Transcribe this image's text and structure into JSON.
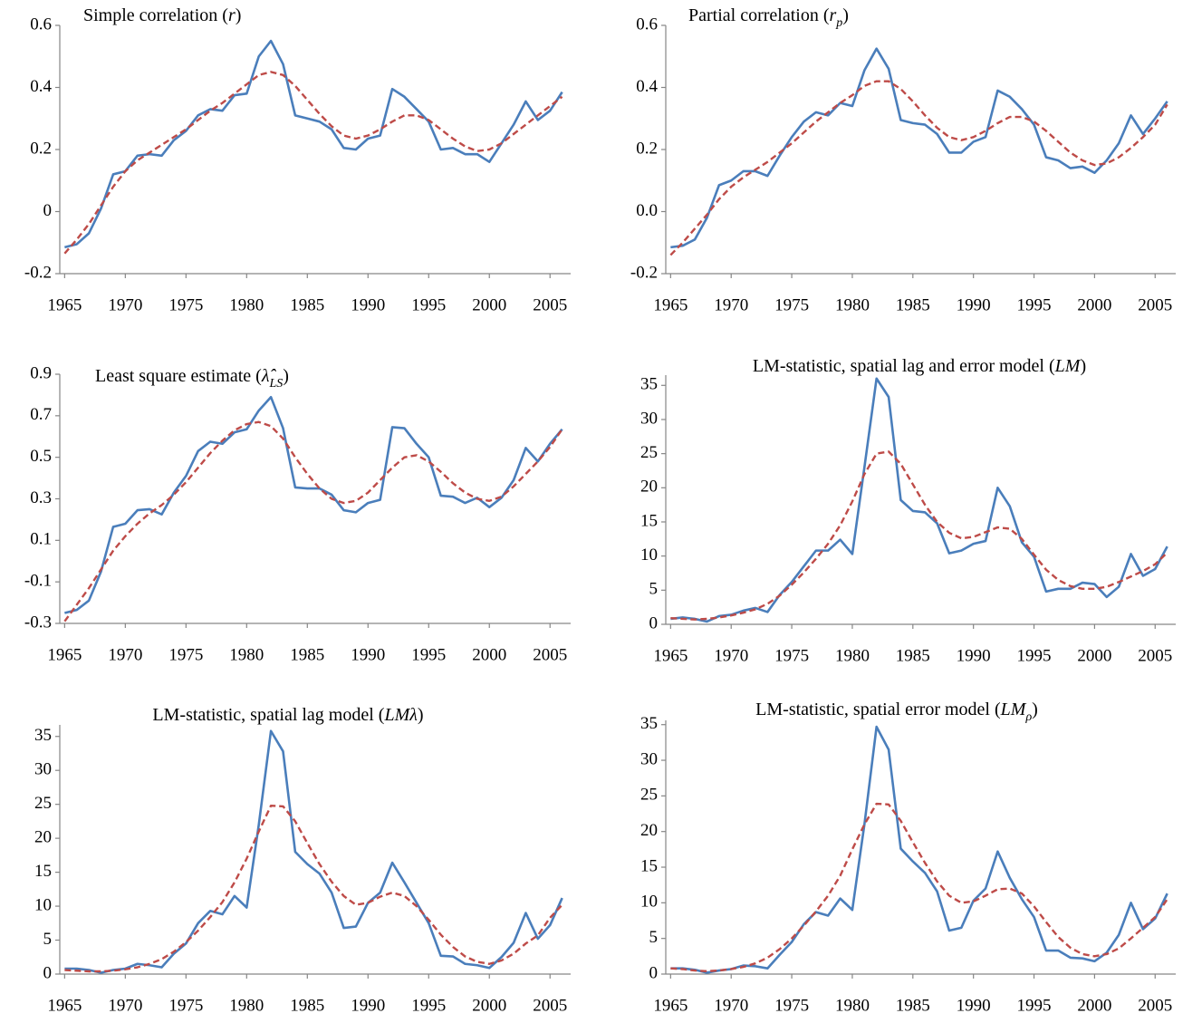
{
  "chart_data": [
    {
      "type": "line",
      "title": [
        {
          "text": "Simple correlation ("
        },
        {
          "text": "r",
          "style": "italic"
        },
        {
          "text": ")"
        }
      ],
      "x": [
        1965,
        1966,
        1967,
        1968,
        1969,
        1970,
        1971,
        1972,
        1973,
        1974,
        1975,
        1976,
        1977,
        1978,
        1979,
        1980,
        1981,
        1982,
        1983,
        1984,
        1985,
        1986,
        1987,
        1988,
        1989,
        1990,
        1991,
        1992,
        1993,
        1994,
        1995,
        1996,
        1997,
        1998,
        1999,
        2000,
        2001,
        2002,
        2003,
        2004,
        2005,
        2006
      ],
      "xlim": [
        1964.6,
        2006.7
      ],
      "xticks": [
        1965,
        1970,
        1975,
        1980,
        1985,
        1990,
        1995,
        2000,
        2005
      ],
      "ylim": [
        -0.2,
        0.6
      ],
      "yticks": [
        -0.2,
        0,
        0.2,
        0.4,
        0.6
      ],
      "series": [
        {
          "color": "#4a7ebb",
          "dash": false,
          "values": [
            -0.115,
            -0.105,
            -0.07,
            0.01,
            0.12,
            0.13,
            0.18,
            0.185,
            0.18,
            0.23,
            0.26,
            0.31,
            0.33,
            0.325,
            0.375,
            0.38,
            0.5,
            0.55,
            0.475,
            0.31,
            0.3,
            0.29,
            0.265,
            0.205,
            0.2,
            0.235,
            0.245,
            0.395,
            0.37,
            0.33,
            0.29,
            0.2,
            0.205,
            0.185,
            0.185,
            0.16,
            0.22,
            0.28,
            0.355,
            0.295,
            0.325,
            0.385
          ]
        },
        {
          "color": "#be4b48",
          "dash": true,
          "values": [
            -0.135,
            -0.09,
            -0.04,
            0.02,
            0.08,
            0.13,
            0.165,
            0.19,
            0.215,
            0.24,
            0.265,
            0.295,
            0.325,
            0.35,
            0.38,
            0.41,
            0.44,
            0.45,
            0.44,
            0.405,
            0.36,
            0.315,
            0.275,
            0.245,
            0.235,
            0.245,
            0.265,
            0.29,
            0.31,
            0.31,
            0.295,
            0.265,
            0.235,
            0.21,
            0.195,
            0.2,
            0.22,
            0.25,
            0.28,
            0.31,
            0.34,
            0.37
          ]
        }
      ]
    },
    {
      "type": "line",
      "title": [
        {
          "text": "Partial correlation ("
        },
        {
          "text": "r",
          "style": "italic"
        },
        {
          "text": "p",
          "style": "italic-sub"
        },
        {
          "text": ")"
        }
      ],
      "x": [
        1965,
        1966,
        1967,
        1968,
        1969,
        1970,
        1971,
        1972,
        1973,
        1974,
        1975,
        1976,
        1977,
        1978,
        1979,
        1980,
        1981,
        1982,
        1983,
        1984,
        1985,
        1986,
        1987,
        1988,
        1989,
        1990,
        1991,
        1992,
        1993,
        1994,
        1995,
        1996,
        1997,
        1998,
        1999,
        2000,
        2001,
        2002,
        2003,
        2004,
        2005,
        2006
      ],
      "xlim": [
        1964.6,
        2006.7
      ],
      "xticks": [
        1965,
        1970,
        1975,
        1980,
        1985,
        1990,
        1995,
        2000,
        2005
      ],
      "ylim": [
        -0.2,
        0.6
      ],
      "yticks": [
        -0.2,
        {
          "value": 0,
          "label": "0.0"
        },
        0.2,
        0.4,
        0.6
      ],
      "series": [
        {
          "color": "#4a7ebb",
          "dash": false,
          "values": [
            -0.115,
            -0.11,
            -0.09,
            -0.02,
            0.085,
            0.1,
            0.13,
            0.13,
            0.115,
            0.18,
            0.24,
            0.29,
            0.32,
            0.31,
            0.35,
            0.34,
            0.455,
            0.525,
            0.46,
            0.295,
            0.285,
            0.28,
            0.25,
            0.19,
            0.19,
            0.225,
            0.24,
            0.39,
            0.37,
            0.33,
            0.28,
            0.175,
            0.165,
            0.14,
            0.145,
            0.125,
            0.165,
            0.22,
            0.31,
            0.25,
            0.3,
            0.355
          ]
        },
        {
          "color": "#be4b48",
          "dash": true,
          "values": [
            -0.14,
            -0.1,
            -0.055,
            -0.01,
            0.04,
            0.08,
            0.11,
            0.135,
            0.16,
            0.19,
            0.22,
            0.255,
            0.29,
            0.32,
            0.35,
            0.375,
            0.405,
            0.42,
            0.42,
            0.395,
            0.355,
            0.31,
            0.27,
            0.24,
            0.23,
            0.24,
            0.26,
            0.285,
            0.305,
            0.305,
            0.29,
            0.26,
            0.225,
            0.19,
            0.165,
            0.15,
            0.155,
            0.175,
            0.205,
            0.24,
            0.28,
            0.345
          ]
        }
      ]
    },
    {
      "type": "line",
      "title": [
        {
          "text": "Least square estimate  ("
        },
        {
          "text": "λ̂",
          "style": "italic"
        },
        {
          "text": "LS",
          "style": "italic-sub"
        },
        {
          "text": ")"
        }
      ],
      "x": [
        1965,
        1966,
        1967,
        1968,
        1969,
        1970,
        1971,
        1972,
        1973,
        1974,
        1975,
        1976,
        1977,
        1978,
        1979,
        1980,
        1981,
        1982,
        1983,
        1984,
        1985,
        1986,
        1987,
        1988,
        1989,
        1990,
        1991,
        1992,
        1993,
        1994,
        1995,
        1996,
        1997,
        1998,
        1999,
        2000,
        2001,
        2002,
        2003,
        2004,
        2005,
        2006
      ],
      "xlim": [
        1964.6,
        2006.7
      ],
      "xticks": [
        1965,
        1970,
        1975,
        1980,
        1985,
        1990,
        1995,
        2000,
        2005
      ],
      "ylim": [
        -0.3,
        0.9
      ],
      "yticks": [
        -0.3,
        -0.1,
        0.1,
        0.3,
        0.5,
        0.7,
        0.9
      ],
      "series": [
        {
          "color": "#4a7ebb",
          "dash": false,
          "values": [
            -0.25,
            -0.235,
            -0.19,
            -0.05,
            0.165,
            0.18,
            0.245,
            0.25,
            0.225,
            0.33,
            0.41,
            0.53,
            0.575,
            0.565,
            0.62,
            0.635,
            0.725,
            0.79,
            0.64,
            0.355,
            0.35,
            0.35,
            0.32,
            0.245,
            0.235,
            0.28,
            0.295,
            0.645,
            0.64,
            0.565,
            0.5,
            0.315,
            0.31,
            0.28,
            0.305,
            0.26,
            0.305,
            0.39,
            0.545,
            0.48,
            0.565,
            0.635
          ]
        },
        {
          "color": "#be4b48",
          "dash": true,
          "values": [
            -0.29,
            -0.21,
            -0.13,
            -0.04,
            0.05,
            0.12,
            0.18,
            0.23,
            0.27,
            0.32,
            0.38,
            0.45,
            0.52,
            0.58,
            0.63,
            0.66,
            0.67,
            0.65,
            0.59,
            0.5,
            0.42,
            0.35,
            0.3,
            0.28,
            0.29,
            0.33,
            0.39,
            0.45,
            0.5,
            0.51,
            0.48,
            0.43,
            0.375,
            0.33,
            0.3,
            0.29,
            0.31,
            0.36,
            0.42,
            0.48,
            0.55,
            0.635
          ]
        }
      ]
    },
    {
      "type": "line",
      "title": [
        {
          "text": "LM-statistic, spatial lag and error model ("
        },
        {
          "text": "LM",
          "style": "italic"
        },
        {
          "text": ")"
        }
      ],
      "x": [
        1965,
        1966,
        1967,
        1968,
        1969,
        1970,
        1971,
        1972,
        1973,
        1974,
        1975,
        1976,
        1977,
        1978,
        1979,
        1980,
        1981,
        1982,
        1983,
        1984,
        1985,
        1986,
        1987,
        1988,
        1989,
        1990,
        1991,
        1992,
        1993,
        1994,
        1995,
        1996,
        1997,
        1998,
        1999,
        2000,
        2001,
        2002,
        2003,
        2004,
        2005,
        2006
      ],
      "xlim": [
        1964.6,
        2006.7
      ],
      "xticks": [
        1965,
        1970,
        1975,
        1980,
        1985,
        1990,
        1995,
        2000,
        2005
      ],
      "ylim": [
        0,
        36.5
      ],
      "yticks": [
        0,
        5,
        10,
        15,
        20,
        25,
        30,
        35
      ],
      "series": [
        {
          "color": "#4a7ebb",
          "dash": false,
          "values": [
            0.8,
            1.0,
            0.8,
            0.4,
            1.2,
            1.4,
            2.0,
            2.4,
            1.8,
            4.3,
            6.2,
            8.5,
            10.8,
            10.8,
            12.4,
            10.3,
            23,
            36,
            33.3,
            18.2,
            16.6,
            16.4,
            14.8,
            10.4,
            10.8,
            11.8,
            12.2,
            20,
            17.3,
            12,
            9.9,
            4.8,
            5.2,
            5.2,
            6.1,
            5.9,
            4,
            5.5,
            10.3,
            7.1,
            8.1,
            11.4
          ]
        },
        {
          "color": "#be4b48",
          "dash": true,
          "values": [
            0.9,
            0.8,
            0.7,
            0.8,
            1.0,
            1.3,
            1.7,
            2.2,
            3.0,
            4.2,
            5.8,
            7.6,
            9.6,
            11.8,
            14.5,
            18,
            22,
            25,
            25.3,
            23.5,
            20.5,
            17.5,
            15,
            13.4,
            12.6,
            12.8,
            13.5,
            14.2,
            14,
            12.5,
            10.2,
            8,
            6.5,
            5.6,
            5.2,
            5.2,
            5.5,
            6.2,
            7,
            7.8,
            8.8,
            10.5
          ]
        }
      ]
    },
    {
      "type": "line",
      "title": [
        {
          "text": "LM-statistic, spatial lag model ("
        },
        {
          "text": "LMλ",
          "style": "italic"
        },
        {
          "text": ")"
        }
      ],
      "x": [
        1965,
        1966,
        1967,
        1968,
        1969,
        1970,
        1971,
        1972,
        1973,
        1974,
        1975,
        1976,
        1977,
        1978,
        1979,
        1980,
        1981,
        1982,
        1983,
        1984,
        1985,
        1986,
        1987,
        1988,
        1989,
        1990,
        1991,
        1992,
        1993,
        1994,
        1995,
        1996,
        1997,
        1998,
        1999,
        2000,
        2001,
        2002,
        2003,
        2004,
        2005,
        2006
      ],
      "xlim": [
        1964.6,
        2006.7
      ],
      "xticks": [
        1965,
        1970,
        1975,
        1980,
        1985,
        1990,
        1995,
        2000,
        2005
      ],
      "ylim": [
        0,
        36.7
      ],
      "yticks": [
        0,
        5,
        10,
        15,
        20,
        25,
        30,
        35
      ],
      "series": [
        {
          "color": "#4a7ebb",
          "dash": false,
          "values": [
            0.8,
            0.8,
            0.6,
            0.2,
            0.6,
            0.8,
            1.5,
            1.3,
            1.0,
            3.0,
            4.5,
            7.5,
            9.3,
            8.8,
            11.5,
            9.8,
            22,
            35.8,
            32.8,
            18,
            16.2,
            14.8,
            12,
            6.8,
            7,
            10.5,
            12,
            16.4,
            13.5,
            10.5,
            7.5,
            2.7,
            2.6,
            1.5,
            1.3,
            0.9,
            2.5,
            4.6,
            9,
            5.2,
            7.2,
            11.2
          ]
        },
        {
          "color": "#be4b48",
          "dash": true,
          "values": [
            0.6,
            0.5,
            0.4,
            0.4,
            0.5,
            0.7,
            1.0,
            1.5,
            2.2,
            3.3,
            4.7,
            6.4,
            8.4,
            10.6,
            13.5,
            17,
            21,
            24.8,
            24.7,
            22.5,
            19.3,
            16.2,
            13.6,
            11.5,
            10.2,
            10.5,
            11.4,
            12,
            11.5,
            10,
            8,
            5.8,
            4,
            2.6,
            1.8,
            1.5,
            2,
            3,
            4.5,
            5.7,
            8.3,
            10.2
          ]
        }
      ]
    },
    {
      "type": "line",
      "title": [
        {
          "text": "LM-statistic, spatial error model ("
        },
        {
          "text": "LM",
          "style": "italic"
        },
        {
          "text": "ρ",
          "style": "italic-sub"
        },
        {
          "text": ")"
        }
      ],
      "x": [
        1965,
        1966,
        1967,
        1968,
        1969,
        1970,
        1971,
        1972,
        1973,
        1974,
        1975,
        1976,
        1977,
        1978,
        1979,
        1980,
        1981,
        1982,
        1983,
        1984,
        1985,
        1986,
        1987,
        1988,
        1989,
        1990,
        1991,
        1992,
        1993,
        1994,
        1995,
        1996,
        1997,
        1998,
        1999,
        2000,
        2001,
        2002,
        2003,
        2004,
        2005,
        2006
      ],
      "xlim": [
        1964.6,
        2006.7
      ],
      "xticks": [
        1965,
        1970,
        1975,
        1980,
        1985,
        1990,
        1995,
        2000,
        2005
      ],
      "ylim": [
        0,
        35.6
      ],
      "yticks": [
        0,
        5,
        10,
        15,
        20,
        25,
        30,
        35
      ],
      "series": [
        {
          "color": "#4a7ebb",
          "dash": false,
          "values": [
            0.8,
            0.8,
            0.6,
            0.2,
            0.5,
            0.7,
            1.2,
            1.1,
            0.8,
            2.7,
            4.5,
            7,
            8.7,
            8.2,
            10.6,
            9,
            21,
            34.7,
            31.5,
            17.6,
            15.8,
            14.2,
            11.6,
            6.1,
            6.5,
            10.3,
            12,
            17.2,
            13.5,
            10.5,
            8,
            3.3,
            3.3,
            2.3,
            2.2,
            1.8,
            3,
            5.5,
            10,
            6.3,
            7.8,
            11.3
          ]
        },
        {
          "color": "#be4b48",
          "dash": true,
          "values": [
            0.8,
            0.7,
            0.5,
            0.4,
            0.5,
            0.7,
            1.0,
            1.5,
            2.3,
            3.5,
            5,
            6.8,
            8.8,
            11,
            13.8,
            17.5,
            21,
            23.9,
            23.8,
            21.5,
            18.5,
            15.6,
            13,
            11,
            10,
            10.2,
            11,
            11.9,
            12,
            11.3,
            9.5,
            7.3,
            5.2,
            3.7,
            2.8,
            2.5,
            2.8,
            3.6,
            5,
            6.5,
            8,
            10.5
          ]
        }
      ]
    }
  ]
}
